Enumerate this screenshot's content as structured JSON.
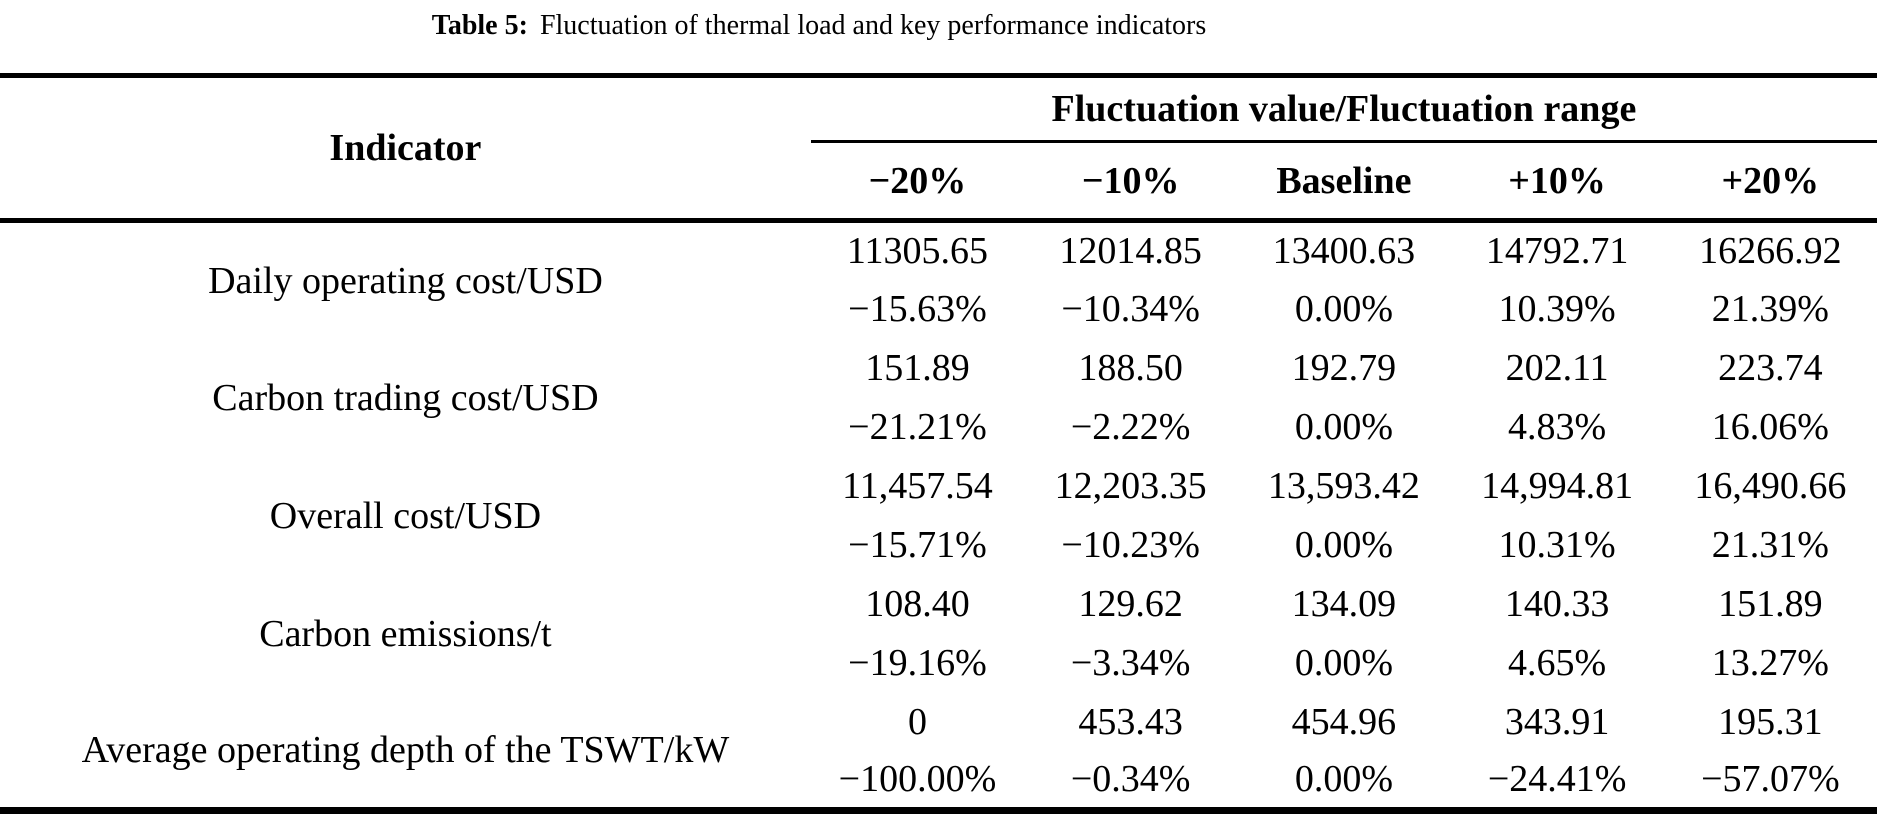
{
  "caption": {
    "label": "Table 5:",
    "text": "Fluctuation of thermal load and key performance indicators"
  },
  "table": {
    "indicator_header": "Indicator",
    "group_header": "Fluctuation value/Fluctuation range",
    "columns": [
      "−20%",
      "−10%",
      "Baseline",
      "+10%",
      "+20%"
    ],
    "rows": [
      {
        "indicator": "Daily operating cost/USD",
        "values": [
          "11305.65",
          "12014.85",
          "13400.63",
          "14792.71",
          "16266.92"
        ],
        "ranges": [
          "−15.63%",
          "−10.34%",
          "0.00%",
          "10.39%",
          "21.39%"
        ]
      },
      {
        "indicator": "Carbon trading cost/USD",
        "values": [
          "151.89",
          "188.50",
          "192.79",
          "202.11",
          "223.74"
        ],
        "ranges": [
          "−21.21%",
          "−2.22%",
          "0.00%",
          "4.83%",
          "16.06%"
        ]
      },
      {
        "indicator": "Overall cost/USD",
        "values": [
          "11,457.54",
          "12,203.35",
          "13,593.42",
          "14,994.81",
          "16,490.66"
        ],
        "ranges": [
          "−15.71%",
          "−10.23%",
          "0.00%",
          "10.31%",
          "21.31%"
        ]
      },
      {
        "indicator": "Carbon emissions/t",
        "values": [
          "108.40",
          "129.62",
          "134.09",
          "140.33",
          "151.89"
        ],
        "ranges": [
          "−19.16%",
          "−3.34%",
          "0.00%",
          "4.65%",
          "13.27%"
        ]
      },
      {
        "indicator": "Average operating depth of the TSWT/kW",
        "values": [
          "0",
          "453.43",
          "454.96",
          "343.91",
          "195.31"
        ],
        "ranges": [
          "−100.00%",
          "−0.34%",
          "0.00%",
          "−24.41%",
          "−57.07%"
        ]
      }
    ]
  },
  "colors": {
    "text": "#000000",
    "background": "#ffffff",
    "rule": "#000000"
  }
}
